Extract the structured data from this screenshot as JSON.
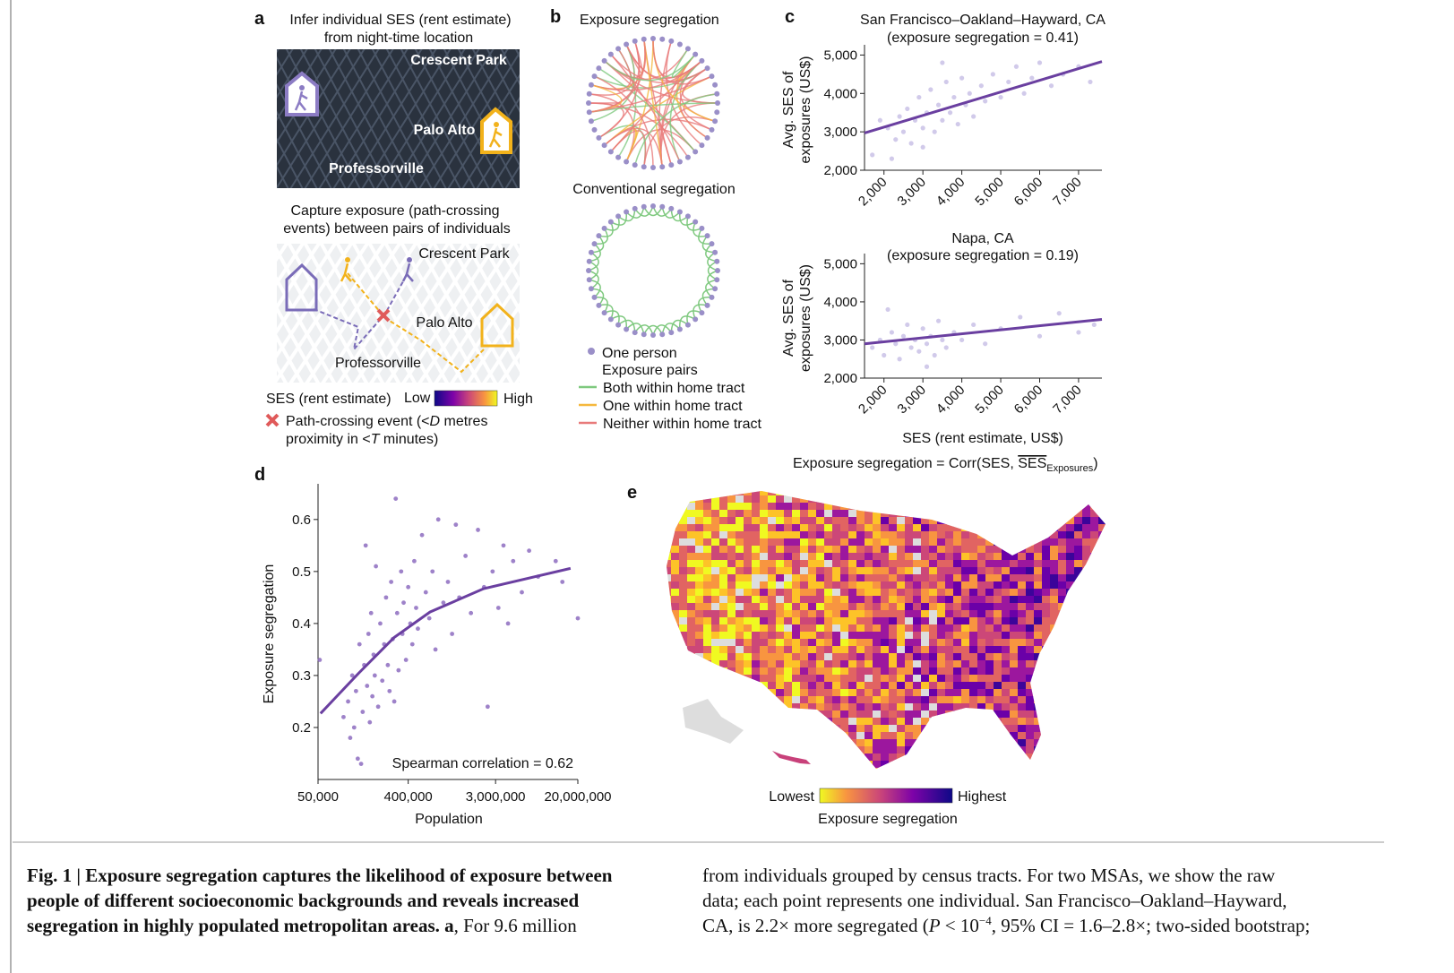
{
  "panels": {
    "a": {
      "label": "a",
      "title": [
        "Infer individual SES (rent estimate)",
        "from night-time location"
      ],
      "places": [
        "Crescent Park",
        "Palo Alto",
        "Professorville"
      ],
      "title2": [
        "Capture exposure (path-crossing",
        "events) between pairs of individuals"
      ],
      "places2": [
        "Crescent Park",
        "Palo Alto",
        "Professorville"
      ],
      "ses_label": "SES (rent estimate)",
      "low": "Low",
      "high": "High",
      "event": [
        "Path-crossing event (<",
        "D",
        " metres"
      ],
      "event2": [
        "proximity in <",
        "T",
        " minutes)"
      ]
    },
    "b": {
      "label": "b",
      "title": "Exposure segregation",
      "title2": "Conventional segregation",
      "legend": [
        "One person",
        "Exposure pairs",
        "Both within home tract",
        "One within home tract",
        "Neither within home tract"
      ]
    },
    "c": {
      "label": "c",
      "xlabel": "SES (rent estimate, US$)",
      "formula": [
        "Exposure segregation = Corr(SES, ",
        "SES",
        "Exposures",
        ")"
      ]
    },
    "d": {
      "label": "d"
    },
    "e": {
      "label": "e",
      "low": "Lowest",
      "high": "Highest",
      "legend_title": "Exposure segregation"
    }
  },
  "chart_data": [
    {
      "type": "scatter",
      "title": "San Francisco–Oakland–Hayward, CA",
      "subtitle": "(exposure segregation = 0.41)",
      "ylabel": [
        "Avg. SES of",
        "exposures (US$)"
      ],
      "color": "#b3a6dc",
      "x": [
        2100,
        2300,
        2400,
        2500,
        2600,
        2700,
        2800,
        2900,
        3000,
        3000,
        3100,
        3200,
        3300,
        3400,
        3500,
        3600,
        3700,
        3800,
        3900,
        4000,
        4100,
        4200,
        4300,
        4500,
        4600,
        4800,
        5000,
        5200,
        5400,
        5600,
        5800,
        6000,
        6300,
        6600,
        7000,
        7300,
        1700,
        1900,
        2200,
        3500
      ],
      "values": [
        3100,
        2800,
        3400,
        3000,
        3600,
        2700,
        3300,
        3900,
        3100,
        2600,
        3500,
        4100,
        3000,
        3700,
        3300,
        4300,
        3500,
        3900,
        3200,
        4400,
        3700,
        4000,
        3400,
        4200,
        3800,
        4500,
        3900,
        4300,
        4700,
        4000,
        4400,
        4800,
        4200,
        4500,
        4700,
        4300,
        2400,
        3300,
        2300,
        4800
      ],
      "fit": {
        "color": "#6a3fa0",
        "x": [
          1500,
          7600
        ],
        "values": [
          2970,
          4830
        ]
      },
      "xlim": [
        1500,
        7600
      ],
      "ylim": [
        2000,
        5150
      ],
      "xticks": [
        {
          "value": 2000,
          "label": "2,000"
        },
        {
          "value": 3000,
          "label": "3,000"
        },
        {
          "value": 4000,
          "label": "4,000"
        },
        {
          "value": 5000,
          "label": "5,000"
        },
        {
          "value": 6000,
          "label": "6,000"
        },
        {
          "value": 7000,
          "label": "7,000"
        }
      ],
      "yticks": [
        {
          "value": 2000,
          "label": "2,000"
        },
        {
          "value": 3000,
          "label": "3,000"
        },
        {
          "value": 4000,
          "label": "4,000"
        },
        {
          "value": 5000,
          "label": "5,000"
        }
      ]
    },
    {
      "type": "scatter",
      "title": "Napa, CA",
      "subtitle": "(exposure segregation = 0.19)",
      "ylabel": [
        "Avg. SES of",
        "exposures (US$)"
      ],
      "color": "#b3a6dc",
      "x": [
        1700,
        1900,
        2000,
        2200,
        2300,
        2400,
        2500,
        2600,
        2700,
        2800,
        2900,
        3000,
        3100,
        3200,
        3300,
        3400,
        3500,
        3600,
        3800,
        4000,
        4300,
        4600,
        5000,
        5500,
        6000,
        6500,
        7000,
        7400,
        2100,
        3100
      ],
      "values": [
        2800,
        3000,
        2600,
        3200,
        2900,
        2500,
        3100,
        3400,
        2800,
        3000,
        2700,
        3300,
        2900,
        3100,
        2600,
        3500,
        3000,
        2800,
        3200,
        3000,
        3400,
        2900,
        3300,
        3600,
        3100,
        3700,
        3200,
        3400,
        3800,
        2300
      ],
      "fit": {
        "color": "#6a3fa0",
        "x": [
          1500,
          7600
        ],
        "values": [
          2900,
          3540
        ]
      },
      "xlim": [
        1500,
        7600
      ],
      "ylim": [
        2000,
        5150
      ],
      "xticks": [
        {
          "value": 2000,
          "label": "2,000"
        },
        {
          "value": 3000,
          "label": "3,000"
        },
        {
          "value": 4000,
          "label": "4,000"
        },
        {
          "value": 5000,
          "label": "5,000"
        },
        {
          "value": 6000,
          "label": "6,000"
        },
        {
          "value": 7000,
          "label": "7,000"
        }
      ],
      "yticks": [
        {
          "value": 2000,
          "label": "2,000"
        },
        {
          "value": 3000,
          "label": "3,000"
        },
        {
          "value": 4000,
          "label": "4,000"
        },
        {
          "value": 5000,
          "label": "5,000"
        }
      ]
    },
    {
      "type": "scatter",
      "xlabel": "Population",
      "ylabel": [
        "Exposure segregation"
      ],
      "annotation": "Spearman correlation = 0.62",
      "log_x": true,
      "color": "#8d6cc0",
      "x": [
        52000,
        90000,
        100000,
        105000,
        110000,
        115000,
        120000,
        125000,
        130000,
        135000,
        140000,
        145000,
        150000,
        155000,
        160000,
        165000,
        170000,
        175000,
        180000,
        185000,
        190000,
        200000,
        210000,
        220000,
        230000,
        240000,
        250000,
        260000,
        270000,
        280000,
        290000,
        300000,
        310000,
        320000,
        340000,
        350000,
        360000,
        380000,
        400000,
        420000,
        440000,
        460000,
        480000,
        500000,
        550000,
        600000,
        650000,
        700000,
        750000,
        800000,
        900000,
        1000000,
        1100000,
        1200000,
        1300000,
        1500000,
        1700000,
        2000000,
        2300000,
        2500000,
        2800000,
        3200000,
        3600000,
        4000000,
        4500000,
        5500000,
        6500000,
        8000000,
        12000000,
        14000000,
        20000000
      ],
      "values": [
        0.33,
        0.22,
        0.25,
        0.18,
        0.3,
        0.2,
        0.27,
        0.14,
        0.36,
        0.13,
        0.23,
        0.32,
        0.55,
        0.28,
        0.38,
        0.21,
        0.42,
        0.26,
        0.34,
        0.3,
        0.51,
        0.24,
        0.4,
        0.29,
        0.36,
        0.45,
        0.32,
        0.27,
        0.48,
        0.37,
        0.25,
        0.64,
        0.42,
        0.31,
        0.5,
        0.38,
        0.44,
        0.33,
        0.47,
        0.4,
        0.36,
        0.52,
        0.43,
        0.39,
        0.57,
        0.46,
        0.41,
        0.5,
        0.35,
        0.6,
        0.44,
        0.48,
        0.38,
        0.59,
        0.45,
        0.53,
        0.42,
        0.58,
        0.47,
        0.24,
        0.5,
        0.43,
        0.55,
        0.4,
        0.52,
        0.46,
        0.54,
        0.49,
        0.52,
        0.48,
        0.41
      ],
      "fit": {
        "color": "#6a3fa0",
        "x": [
          53000,
          127000,
          289000,
          661000,
          2280000,
          16900000
        ],
        "values": [
          0.227,
          0.304,
          0.373,
          0.422,
          0.467,
          0.506
        ]
      },
      "xlim": [
        50000,
        20000000
      ],
      "ylim": [
        0.1,
        0.66
      ],
      "xticks": [
        {
          "value": 50000,
          "label": "50,000"
        },
        {
          "value": 400000,
          "label": "400,000"
        },
        {
          "value": 3000000,
          "label": "3,000,000"
        },
        {
          "value": 20000000,
          "label": "20,000,000"
        }
      ],
      "yticks": [
        0.2,
        0.3,
        0.4,
        0.5,
        0.6
      ]
    }
  ],
  "caption": {
    "left": [
      [
        "Fig. 1 | Exposure segregation captures the likelihood of exposure between"
      ],
      [
        "people of different socioeconomic backgrounds and reveals increased"
      ],
      [
        "segregation in highly populated metropolitan areas. a",
        ", For 9.6 million"
      ]
    ],
    "right": [
      [
        "from individuals grouped by census tracts. For two MSAs, we show the raw"
      ],
      [
        "data; each point represents one individual. San Francisco–Oakland–Hayward,"
      ],
      [
        "CA, is 2.2× more segregated (",
        "P",
        " < 10",
        "−4",
        ", 95% CI = 1.6–2.8×; two-sided bootstrap;"
      ]
    ]
  }
}
